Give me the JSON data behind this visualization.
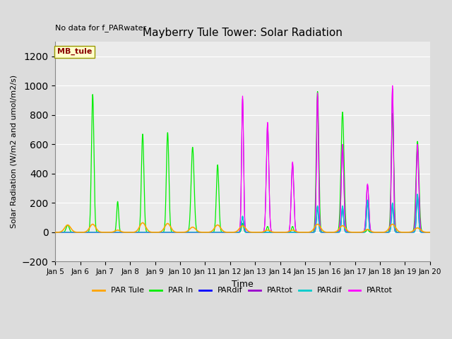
{
  "title": "Mayberry Tule Tower: Solar Radiation",
  "subtitle": "No data for f_PARwater",
  "xlabel": "Time",
  "ylabel": "Solar Radiation (W/m2 and umol/m2/s)",
  "ylim": [
    -200,
    1300
  ],
  "yticks": [
    -200,
    0,
    200,
    400,
    600,
    800,
    1000,
    1200
  ],
  "xtick_labels": [
    "Jan 5",
    "Jan 6",
    "Jan 7",
    "Jan 8",
    "Jan 9",
    "Jan 10",
    "Jan 11",
    "Jan 12",
    "Jan 13",
    "Jan 14",
    "Jan 15",
    "Jan 16",
    "Jan 17",
    "Jan 18",
    "Jan 19",
    "Jan 20"
  ],
  "bg_color": "#dcdcdc",
  "plot_bg": "#ebebeb",
  "legend_box_label": "MB_tule",
  "legend_box_color": "#ffffcc",
  "legend_box_edge": "#999900",
  "series_colors": {
    "PAR_Tule": "#ffa500",
    "PAR_In": "#00ee00",
    "PARdif1": "#0000ff",
    "PARtot1": "#9900cc",
    "PARdif2": "#00cccc",
    "PARtot2": "#ff00ff"
  },
  "legend_labels": [
    "PAR Tule",
    "PAR In",
    "PARdif",
    "PARtot",
    "PARdif",
    "PARtot"
  ],
  "PAR_In_peaks": [
    50,
    940,
    210,
    670,
    680,
    580,
    460,
    60,
    40,
    40,
    960,
    820,
    20,
    810,
    620
  ],
  "PAR_Tule_peaks": [
    50,
    55,
    15,
    65,
    60,
    35,
    50,
    45,
    15,
    15,
    55,
    45,
    20,
    55,
    30
  ],
  "PARtot2_peaks": [
    0,
    0,
    0,
    0,
    0,
    0,
    0,
    930,
    750,
    480,
    950,
    600,
    330,
    1000,
    600
  ],
  "PARdif2_peaks": [
    0,
    0,
    0,
    0,
    0,
    0,
    0,
    110,
    0,
    0,
    180,
    180,
    220,
    200,
    260
  ],
  "PAR_In_widths": [
    0.06,
    0.05,
    0.04,
    0.05,
    0.05,
    0.06,
    0.05,
    0.04,
    0.04,
    0.04,
    0.05,
    0.06,
    0.04,
    0.05,
    0.06
  ],
  "PARtot2_widths": [
    0.04,
    0.04,
    0.04,
    0.04,
    0.04,
    0.04,
    0.04,
    0.04,
    0.05,
    0.05,
    0.04,
    0.05,
    0.05,
    0.04,
    0.05
  ],
  "PAR_Tule_widths": [
    0.12,
    0.12,
    0.1,
    0.12,
    0.12,
    0.12,
    0.12,
    0.12,
    0.1,
    0.1,
    0.12,
    0.12,
    0.1,
    0.12,
    0.12
  ],
  "PARdif2_widths": [
    0.04,
    0.04,
    0.04,
    0.04,
    0.04,
    0.04,
    0.04,
    0.04,
    0.04,
    0.04,
    0.04,
    0.04,
    0.04,
    0.04,
    0.04
  ]
}
